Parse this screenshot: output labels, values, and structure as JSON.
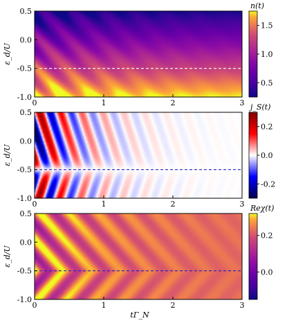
{
  "figure": {
    "xlabel": "tΓ_N",
    "ylabel": "ε_d/U"
  },
  "chart_data": [
    {
      "type": "heatmap",
      "quantity_label": "n(t)",
      "colormap": "plasma",
      "xlim": [
        0,
        3
      ],
      "ylim": [
        -1.0,
        0.5
      ],
      "xticks": [
        "0",
        "1",
        "2",
        "3"
      ],
      "yticks": [
        "0.5",
        "0.0",
        "-0.5",
        "-1.0"
      ],
      "colorbar_range": [
        0.25,
        1.75
      ],
      "colorbar_ticks": [
        "1.5",
        "1.0",
        "0.5"
      ],
      "reference_line": {
        "y": -0.5,
        "color": "#ffffff",
        "style": "dashed"
      }
    },
    {
      "type": "heatmap",
      "quantity_label": "j_S(t)",
      "colormap": "seismic",
      "xlim": [
        0,
        3
      ],
      "ylim": [
        -1.0,
        0.5
      ],
      "xticks": [
        "0",
        "1",
        "2",
        "3"
      ],
      "yticks": [
        "0.5",
        "0.0",
        "-0.5",
        "-1.0"
      ],
      "colorbar_range": [
        -0.3,
        0.3
      ],
      "colorbar_ticks": [
        "0.2",
        "0.0",
        "-0.2"
      ],
      "reference_line": {
        "y": -0.5,
        "color": "#1f1fbf",
        "style": "dashed"
      }
    },
    {
      "type": "heatmap",
      "quantity_label": "Reχ(t)",
      "colormap": "plasma",
      "xlim": [
        0,
        3
      ],
      "ylim": [
        -1.0,
        0.5
      ],
      "xticks": [
        "0",
        "1",
        "2",
        "3"
      ],
      "yticks": [
        "0.5",
        "0.0",
        "-0.5",
        "-1.0"
      ],
      "colorbar_range": [
        -0.15,
        0.32
      ],
      "colorbar_ticks": [
        "0.2",
        "0.0"
      ],
      "reference_line": {
        "y": -0.5,
        "color": "#1f1fbf",
        "style": "dashed"
      }
    }
  ]
}
